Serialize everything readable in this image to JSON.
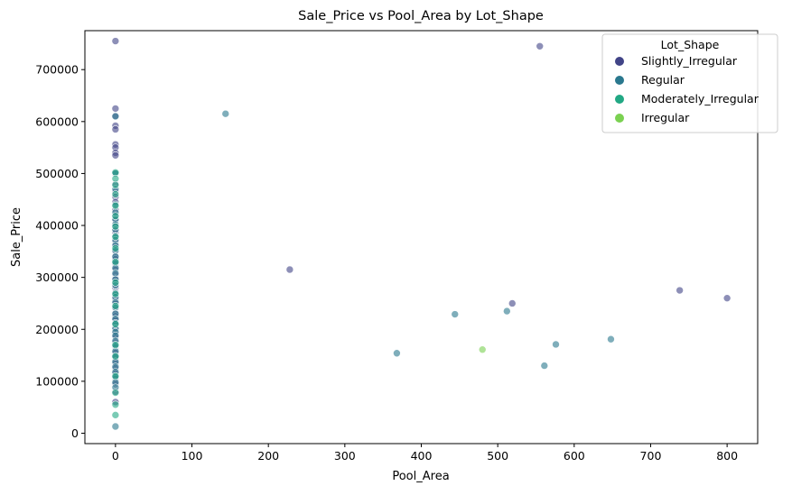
{
  "chart_data": {
    "type": "scatter",
    "title": "Sale_Price vs Pool_Area by Lot_Shape",
    "xlabel": "Pool_Area",
    "ylabel": "Sale_Price",
    "xlim": [
      -40,
      840
    ],
    "ylim": [
      -20000,
      775000
    ],
    "x_ticks": [
      0,
      100,
      200,
      300,
      400,
      500,
      600,
      700,
      800
    ],
    "y_ticks": [
      0,
      100000,
      200000,
      300000,
      400000,
      500000,
      600000,
      700000
    ],
    "grid": false,
    "legend": {
      "title": "Lot_Shape",
      "placement": "top-right",
      "entries": [
        "Slightly_Irregular",
        "Regular",
        "Moderately_Irregular",
        "Irregular"
      ]
    },
    "colors": {
      "Slightly_Irregular": "#414487",
      "Regular": "#2a788e",
      "Moderately_Irregular": "#22a884",
      "Irregular": "#7ad151"
    },
    "series": [
      {
        "name": "Slightly_Irregular",
        "x": [
          0,
          0,
          0,
          0,
          0,
          0,
          0,
          0,
          0,
          0,
          0,
          0,
          0,
          0,
          0,
          0,
          0,
          0,
          0,
          0,
          0,
          0,
          0,
          0,
          0,
          0,
          0,
          0,
          0,
          0,
          0,
          0,
          0,
          0,
          0,
          0,
          0,
          0,
          0,
          0,
          0,
          0,
          0,
          0,
          0,
          0,
          0,
          0,
          0,
          0,
          0,
          0,
          0,
          0,
          0,
          555,
          228,
          519,
          738,
          800
        ],
        "y": [
          755000,
          625000,
          611000,
          592000,
          585000,
          556000,
          550000,
          540000,
          535000,
          500000,
          480000,
          465000,
          455000,
          445000,
          430000,
          420000,
          410000,
          398000,
          390000,
          385000,
          375000,
          368000,
          360000,
          350000,
          340000,
          335000,
          325000,
          315000,
          305000,
          298000,
          290000,
          280000,
          272000,
          265000,
          258000,
          250000,
          240000,
          232000,
          225000,
          218000,
          210000,
          200000,
          192000,
          185000,
          175000,
          165000,
          155000,
          145000,
          135000,
          125000,
          115000,
          105000,
          95000,
          80000,
          60000,
          745000,
          315000,
          250000,
          275000,
          260000
        ]
      },
      {
        "name": "Regular",
        "x": [
          0,
          0,
          0,
          0,
          0,
          0,
          0,
          0,
          0,
          0,
          0,
          0,
          0,
          0,
          0,
          0,
          0,
          0,
          0,
          0,
          0,
          0,
          0,
          0,
          0,
          0,
          0,
          0,
          0,
          0,
          0,
          0,
          0,
          0,
          0,
          0,
          0,
          0,
          0,
          144,
          368,
          444,
          512,
          561,
          576,
          648
        ],
        "y": [
          610000,
          500000,
          470000,
          440000,
          425000,
          412000,
          402000,
          392000,
          380000,
          372000,
          362000,
          352000,
          340000,
          328000,
          318000,
          308000,
          296000,
          285000,
          270000,
          262000,
          252000,
          242000,
          230000,
          220000,
          212000,
          202000,
          195000,
          188000,
          178000,
          168000,
          158000,
          148000,
          138000,
          128000,
          118000,
          108000,
          98000,
          88000,
          13000,
          615000,
          154000,
          229000,
          235000,
          130000,
          171000,
          181000
        ]
      },
      {
        "name": "Moderately_Irregular",
        "x": [
          0,
          0,
          0,
          0,
          0,
          0,
          0,
          0,
          0,
          0,
          0,
          0,
          0,
          0,
          0,
          0,
          0,
          0,
          0,
          0
        ],
        "y": [
          502000,
          490000,
          478000,
          460000,
          438000,
          418000,
          398000,
          378000,
          356000,
          330000,
          290000,
          268000,
          245000,
          210000,
          170000,
          148000,
          110000,
          78000,
          55000,
          35000
        ]
      },
      {
        "name": "Irregular",
        "x": [
          480
        ],
        "y": [
          161000
        ]
      }
    ]
  }
}
